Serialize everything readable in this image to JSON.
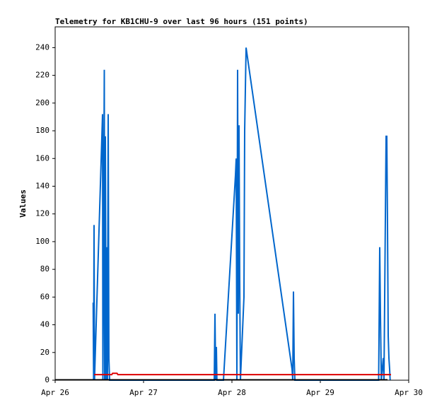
{
  "chart_data": {
    "type": "line",
    "title": "Telemetry for KB1CHU-9 over last 96 hours (151 points)",
    "y_label": "Values",
    "xlim": [
      26,
      30
    ],
    "xticks": [
      {
        "value": 26,
        "label": "Apr 26"
      },
      {
        "value": 27,
        "label": "Apr 27"
      },
      {
        "value": 28,
        "label": "Apr 28"
      },
      {
        "value": 29,
        "label": "Apr 29"
      },
      {
        "value": 30,
        "label": "Apr 30"
      }
    ],
    "ylim": [
      0,
      255
    ],
    "yticks": [
      0,
      20,
      40,
      60,
      80,
      100,
      120,
      140,
      160,
      180,
      200,
      220,
      240
    ],
    "series": [
      {
        "color": "#0066cc",
        "x": [
          26.43,
          26.435,
          26.44,
          26.445,
          26.536,
          26.54,
          26.548,
          26.556,
          26.56,
          26.568,
          26.576,
          26.584,
          26.592,
          26.6,
          26.608,
          26.616,
          27.8,
          27.808,
          27.816,
          27.824,
          27.83,
          27.904,
          28.04,
          28.048,
          28.056,
          28.064,
          28.072,
          28.08,
          28.088,
          28.096,
          28.136,
          28.144,
          28.16,
          28.68,
          28.688,
          28.696,
          28.704,
          28.712,
          29.66,
          29.672,
          29.68,
          29.69,
          29.712,
          29.72,
          29.744,
          29.752,
          29.76,
          29.768,
          29.776,
          29.784,
          29.79
        ],
        "values": [
          56,
          0,
          112,
          0,
          192,
          0,
          104,
          224,
          0,
          176,
          0,
          96,
          0,
          192,
          16,
          0,
          0,
          48,
          0,
          24,
          0,
          0,
          148,
          160,
          0,
          224,
          48,
          184,
          72,
          0,
          60,
          180,
          240,
          8,
          0,
          64,
          16,
          0,
          0,
          96,
          48,
          0,
          16,
          0,
          176,
          176,
          112,
          32,
          16,
          8,
          0
        ]
      },
      {
        "color": "#dd0000",
        "x": [
          26.44,
          26.64,
          26.65,
          26.7,
          26.71,
          29.8
        ],
        "values": [
          4,
          4,
          5,
          5,
          4,
          4
        ]
      }
    ]
  }
}
